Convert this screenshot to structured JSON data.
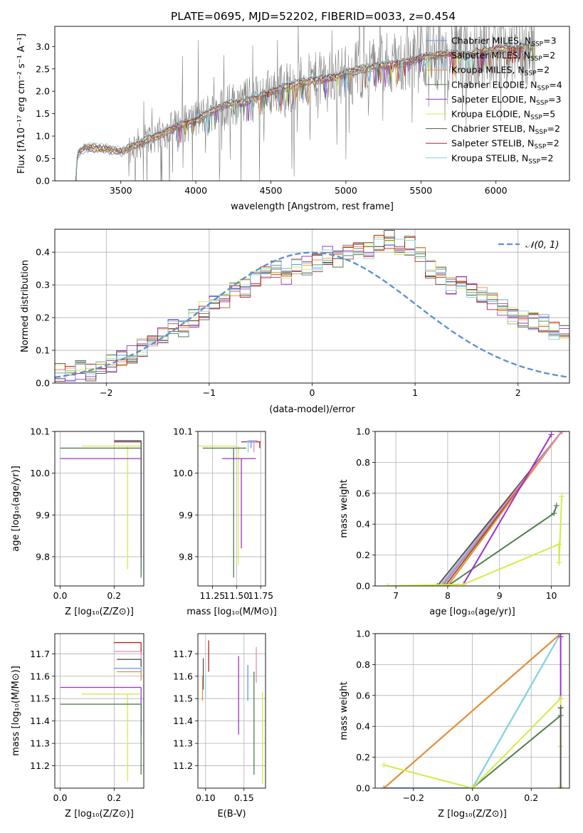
{
  "figure_title": "PLATE=0695, MJD=52202, FIBERID=0033, z=0.454",
  "colors": {
    "chabrier_miles": "#6495ed",
    "salpeter_miles": "#a0522d",
    "kroupa_miles": "#e69138",
    "chabrier_elodie": "#4f7f4f",
    "salpeter_elodie": "#9932cc",
    "kroupa_elodie": "#d4ea4a",
    "chabrier_stelib": "#555555",
    "salpeter_stelib": "#b22222",
    "kroupa_stelib": "#7fd4e0",
    "pink": "#e88ab4",
    "data": "#808080",
    "gaussian": "#5b8ed6"
  },
  "chart_data": [
    {
      "id": "spectrum",
      "type": "line",
      "title": "PLATE=0695, MJD=52202, FIBERID=0033, z=0.454",
      "xlabel": "wavelength [Angstrom, rest frame]",
      "ylabel": "Flux [fλ10⁻¹⁷ erg cm⁻² s⁻¹ A⁻¹]",
      "xlim": [
        3060,
        6490
      ],
      "ylim": [
        0,
        3.45
      ],
      "xticks": [
        3500,
        4000,
        4500,
        5000,
        5500,
        6000
      ],
      "yticks": [
        0.0,
        0.5,
        1.0,
        1.5,
        2.0,
        2.5,
        3.0
      ],
      "ytick_format": 1,
      "grid": false,
      "legend": "top-right",
      "legend_entries": [
        {
          "name": "Chabrier MILES, N",
          "sub": "SSP",
          "suffix": "=3",
          "color": "#6495ed"
        },
        {
          "name": "Salpeter MILES, N",
          "sub": "SSP",
          "suffix": "=2",
          "color": "#a0522d"
        },
        {
          "name": "Kroupa MILES, N",
          "sub": "SSP",
          "suffix": "=2",
          "color": "#e69138"
        },
        {
          "name": "Chabrier ELODIE, N",
          "sub": "SSP",
          "suffix": "=4",
          "color": "#4f7f4f"
        },
        {
          "name": "Salpeter ELODIE, N",
          "sub": "SSP",
          "suffix": "=3",
          "color": "#9932cc"
        },
        {
          "name": "Kroupa ELODIE, N",
          "sub": "SSP",
          "suffix": "=5",
          "color": "#d4ea4a"
        },
        {
          "name": "Chabrier STELIB, N",
          "sub": "SSP",
          "suffix": "=2",
          "color": "#555555"
        },
        {
          "name": "Salpeter STELIB, N",
          "sub": "SSP",
          "suffix": "=2",
          "color": "#b22222"
        },
        {
          "name": "Kroupa STELIB, N",
          "sub": "SSP",
          "suffix": "=2",
          "color": "#7fd4e0"
        }
      ],
      "continuum": [
        [
          3200,
          0.0
        ],
        [
          3210,
          0.6
        ],
        [
          3260,
          0.75
        ],
        [
          3400,
          0.72
        ],
        [
          3500,
          0.65
        ],
        [
          3600,
          0.8
        ],
        [
          3700,
          0.95
        ],
        [
          3800,
          1.1
        ],
        [
          3900,
          1.25
        ],
        [
          4000,
          1.35
        ],
        [
          4100,
          1.55
        ],
        [
          4200,
          1.7
        ],
        [
          4300,
          1.75
        ],
        [
          4400,
          1.85
        ],
        [
          4500,
          2.0
        ],
        [
          4600,
          2.1
        ],
        [
          4700,
          2.2
        ],
        [
          4800,
          2.25
        ],
        [
          4900,
          2.3
        ],
        [
          5000,
          2.4
        ],
        [
          5100,
          2.5
        ],
        [
          5200,
          2.55
        ],
        [
          5300,
          2.6
        ],
        [
          5400,
          2.65
        ],
        [
          5500,
          2.75
        ],
        [
          5600,
          2.8
        ],
        [
          5700,
          2.85
        ],
        [
          5800,
          2.8
        ],
        [
          5900,
          2.9
        ],
        [
          6000,
          2.95
        ],
        [
          6100,
          2.95
        ],
        [
          6250,
          3.0
        ]
      ],
      "noise_start": 3550
    },
    {
      "id": "residuals",
      "type": "area",
      "xlabel": "(data-model)/error",
      "ylabel": "Normed distribution",
      "xlim": [
        -2.5,
        2.5
      ],
      "ylim": [
        0,
        0.47
      ],
      "xticks": [
        -2,
        -1,
        0,
        1,
        2
      ],
      "xtick_labels": [
        "−2",
        "−1",
        "0",
        "1",
        "2"
      ],
      "yticks": [
        0.0,
        0.1,
        0.2,
        0.3,
        0.4
      ],
      "ytick_format": 1,
      "grid": true,
      "legend": "top-right",
      "legend_label": "𝒩(0, 1)",
      "bin_start": -2.5,
      "bin_width": 0.1,
      "base_hist": [
        0.03,
        0.03,
        0.04,
        0.03,
        0.05,
        0.06,
        0.07,
        0.09,
        0.11,
        0.12,
        0.14,
        0.17,
        0.17,
        0.2,
        0.22,
        0.25,
        0.25,
        0.28,
        0.29,
        0.32,
        0.33,
        0.35,
        0.33,
        0.35,
        0.36,
        0.37,
        0.39,
        0.38,
        0.4,
        0.41,
        0.41,
        0.43,
        0.44,
        0.42,
        0.42,
        0.39,
        0.35,
        0.33,
        0.3,
        0.3,
        0.28,
        0.27,
        0.25,
        0.23,
        0.21,
        0.2,
        0.19,
        0.18,
        0.16,
        0.15
      ],
      "gaussian": {
        "mu": 0,
        "sigma": 1
      }
    },
    {
      "id": "age-vs-z",
      "type": "scatter",
      "xlabel": "Z [log₁₀(Z/Z⊙)]",
      "ylabel": "age  [log₁₀(age/yr)]",
      "xlim": [
        -0.02,
        0.31
      ],
      "ylim": [
        9.73,
        10.1
      ],
      "xticks": [
        0.0,
        0.2
      ],
      "xtick_labels": [
        "0.0",
        "0.2"
      ],
      "yticks": [
        9.8,
        9.9,
        10.0,
        10.1
      ],
      "ytick_format": 1,
      "grid": true,
      "segments": [
        {
          "color": "#b22222",
          "h": [
            0.2,
            0.3,
            10.075
          ],
          "v": [
            0.3,
            9.78,
            10.075
          ]
        },
        {
          "color": "#7fd4e0",
          "h": [
            0.2,
            0.3,
            10.077
          ],
          "v": [
            0.3,
            9.76,
            10.077
          ]
        },
        {
          "color": "#d4ea4a",
          "h": [
            0.08,
            0.3,
            10.065
          ],
          "v": [
            0.25,
            9.77,
            10.065
          ]
        },
        {
          "color": "#4f7f4f",
          "h": [
            0.0,
            0.3,
            10.06
          ],
          "v": [
            0.3,
            9.75,
            10.06
          ]
        },
        {
          "color": "#9932cc",
          "h": [
            0.0,
            0.3,
            10.035
          ],
          "v": [
            0.3,
            9.82,
            10.035
          ]
        },
        {
          "color": "#555555",
          "h": [
            0.2,
            0.3,
            10.078
          ],
          "v": [
            0.3,
            9.8,
            10.078
          ]
        }
      ]
    },
    {
      "id": "age-vs-mass",
      "type": "scatter",
      "xlabel": "mass [log₁₀(M/M⊙)]",
      "xlim": [
        11.1,
        11.8
      ],
      "ylim": [
        9.73,
        10.1
      ],
      "xticks": [
        11.25,
        11.5,
        11.75
      ],
      "xtick_labels": [
        "11.25",
        "11.50",
        "11.75"
      ],
      "yticks": [
        9.8,
        9.9,
        10.0,
        10.1
      ],
      "ytick_format": 1,
      "grid": true,
      "segments": [
        {
          "color": "#b22222",
          "h": [
            11.55,
            11.75,
            10.075
          ],
          "v": [
            11.74,
            10.06,
            10.075
          ]
        },
        {
          "color": "#d4ea4a",
          "h": [
            11.1,
            11.5,
            10.065
          ],
          "v": [
            11.52,
            9.78,
            10.065
          ]
        },
        {
          "color": "#4f7f4f",
          "h": [
            11.15,
            11.6,
            10.06
          ],
          "v": [
            11.47,
            9.75,
            10.06
          ]
        },
        {
          "color": "#9932cc",
          "h": [
            11.35,
            11.7,
            10.035
          ],
          "v": [
            11.55,
            9.82,
            10.035
          ]
        },
        {
          "color": "#6495ed",
          "h": [
            11.6,
            11.7,
            10.075
          ],
          "v": [
            11.65,
            10.06,
            10.075
          ]
        },
        {
          "color": "#7fd4e0",
          "h": [
            11.6,
            11.7,
            10.077
          ],
          "v": [
            11.62,
            10.05,
            10.077
          ]
        },
        {
          "color": "#e88ab4",
          "h": [
            11.62,
            11.72,
            10.078
          ],
          "v": [
            11.68,
            10.05,
            10.078
          ]
        }
      ]
    },
    {
      "id": "cumulative-age",
      "type": "line",
      "xlabel": "age  [log₁₀(age/yr)]",
      "ylabel": "mass weight",
      "xlim": [
        6.6,
        10.35
      ],
      "ylim": [
        0,
        1.0
      ],
      "xticks": [
        7,
        8,
        9,
        10
      ],
      "yticks": [
        0.0,
        0.2,
        0.4,
        0.6,
        0.8,
        1.0
      ],
      "ytick_format": 1,
      "grid": true,
      "series": [
        {
          "color": "#6495ed",
          "points": [
            [
              7.9,
              0
            ],
            [
              10.2,
              1.0
            ]
          ]
        },
        {
          "color": "#a0522d",
          "points": [
            [
              7.95,
              0
            ],
            [
              10.2,
              1.0
            ]
          ]
        },
        {
          "color": "#e69138",
          "points": [
            [
              8.0,
              0
            ],
            [
              10.2,
              1.0
            ]
          ]
        },
        {
          "color": "#7fd4e0",
          "points": [
            [
              7.85,
              0
            ],
            [
              10.2,
              1.0
            ]
          ]
        },
        {
          "color": "#555555",
          "points": [
            [
              7.8,
              0
            ],
            [
              10.2,
              1.0
            ]
          ]
        },
        {
          "color": "#e88ab4",
          "points": [
            [
              7.9,
              0.01
            ],
            [
              10.2,
              1.0
            ]
          ]
        },
        {
          "color": "#4f7f4f",
          "points": [
            [
              8.0,
              0
            ],
            [
              10.05,
              0.47
            ],
            [
              10.1,
              0.52
            ]
          ]
        },
        {
          "color": "#9932cc",
          "points": [
            [
              8.3,
              0.01
            ],
            [
              10.0,
              0.98
            ]
          ]
        },
        {
          "color": "#d4ea4a",
          "points": [
            [
              6.85,
              0
            ],
            [
              8.3,
              0.01
            ],
            [
              10.15,
              0.27
            ],
            [
              10.15,
              0.15
            ],
            [
              10.2,
              0.58
            ]
          ]
        }
      ]
    },
    {
      "id": "mass-vs-z",
      "type": "scatter",
      "xlabel": "Z [log₁₀(Z/Z⊙)]",
      "ylabel": "mass [log₁₀(M/M⊙)]",
      "xlim": [
        -0.02,
        0.31
      ],
      "ylim": [
        11.1,
        11.79
      ],
      "xticks": [
        0.0,
        0.2
      ],
      "xtick_labels": [
        "0.0",
        "0.2"
      ],
      "yticks": [
        11.2,
        11.3,
        11.4,
        11.5,
        11.6,
        11.7
      ],
      "ytick_format": 1,
      "grid": true,
      "segments": [
        {
          "color": "#b22222",
          "h": [
            0.2,
            0.3,
            11.75
          ],
          "v": [
            0.3,
            11.7,
            11.75
          ]
        },
        {
          "color": "#e88ab4",
          "h": [
            0.2,
            0.3,
            11.71
          ],
          "v": [
            0.3,
            11.66,
            11.71
          ]
        },
        {
          "color": "#555555",
          "h": [
            0.21,
            0.3,
            11.675
          ],
          "v": [
            0.3,
            11.64,
            11.675
          ]
        },
        {
          "color": "#6495ed",
          "h": [
            0.2,
            0.3,
            11.635
          ],
          "v": [
            0.3,
            11.6,
            11.635
          ]
        },
        {
          "color": "#e69138",
          "h": [
            0.21,
            0.3,
            11.62
          ],
          "v": [
            0.3,
            11.58,
            11.62
          ]
        },
        {
          "color": "#9932cc",
          "h": [
            0.0,
            0.3,
            11.55
          ],
          "v": [
            0.3,
            11.34,
            11.55
          ]
        },
        {
          "color": "#d4ea4a",
          "h": [
            0.08,
            0.3,
            11.52
          ],
          "v": [
            0.25,
            11.13,
            11.52
          ]
        },
        {
          "color": "#4f7f4f",
          "h": [
            0.0,
            0.3,
            11.475
          ],
          "v": [
            0.3,
            11.16,
            11.475
          ]
        }
      ]
    },
    {
      "id": "mass-vs-ebv",
      "type": "scatter",
      "xlabel": "E(B-V)",
      "xlim": [
        0.09,
        0.178
      ],
      "ylim": [
        11.1,
        11.79
      ],
      "xticks": [
        0.1,
        0.15
      ],
      "xtick_labels": [
        "0.10",
        "0.15"
      ],
      "yticks": [
        11.2,
        11.3,
        11.4,
        11.5,
        11.6,
        11.7
      ],
      "ytick_format": 1,
      "grid": true,
      "vsegments": [
        {
          "color": "#555555",
          "x": 0.097,
          "y0": 11.54,
          "y1": 11.68
        },
        {
          "color": "#e69138",
          "x": 0.096,
          "y0": 11.49,
          "y1": 11.6
        },
        {
          "color": "#7fd4e0",
          "x": 0.1,
          "y0": 11.5,
          "y1": 11.6
        },
        {
          "color": "#b22222",
          "x": 0.104,
          "y0": 11.62,
          "y1": 11.76
        },
        {
          "color": "#9932cc",
          "x": 0.143,
          "y0": 11.34,
          "y1": 11.69
        },
        {
          "color": "#6495ed",
          "x": 0.155,
          "y0": 11.49,
          "y1": 11.65
        },
        {
          "color": "#4f7f4f",
          "x": 0.163,
          "y0": 11.16,
          "y1": 11.62
        },
        {
          "color": "#e88ab4",
          "x": 0.166,
          "y0": 11.57,
          "y1": 11.73
        },
        {
          "color": "#d4ea4a",
          "x": 0.174,
          "y0": 11.12,
          "y1": 11.53
        }
      ]
    },
    {
      "id": "cumulative-z",
      "type": "line",
      "xlabel": "Z [log₁₀(Z/Z⊙)]",
      "ylabel": "mass weight",
      "xlim": [
        -0.33,
        0.33
      ],
      "ylim": [
        0,
        1.0
      ],
      "xticks": [
        -0.2,
        0.0,
        0.2
      ],
      "xtick_labels": [
        "−0.2",
        "0.0",
        "0.2"
      ],
      "yticks": [
        0.0,
        0.2,
        0.4,
        0.6,
        0.8,
        1.0
      ],
      "ytick_format": 1,
      "grid": true,
      "series": [
        {
          "color": "#6495ed",
          "points": [
            [
              -0.3,
              0
            ],
            [
              0.0,
              0
            ],
            [
              0.3,
              1.0
            ]
          ]
        },
        {
          "color": "#7fd4e0",
          "points": [
            [
              0.0,
              0
            ],
            [
              0.3,
              1.0
            ]
          ]
        },
        {
          "color": "#a0522d",
          "points": [
            [
              -0.3,
              0
            ],
            [
              0.3,
              1.0
            ]
          ]
        },
        {
          "color": "#e69138",
          "points": [
            [
              -0.3,
              0
            ],
            [
              0.3,
              1.0
            ]
          ]
        },
        {
          "color": "#4f7f4f",
          "points": [
            [
              0.0,
              0
            ],
            [
              0.3,
              0.47
            ],
            [
              0.3,
              0.52
            ]
          ]
        },
        {
          "color": "#9932cc",
          "points": [
            [
              0.3,
              0.98
            ],
            [
              0.3,
              0.58
            ]
          ]
        },
        {
          "color": "#d4ea4a",
          "points": [
            [
              -0.3,
              0.15
            ],
            [
              0.0,
              0
            ],
            [
              0.3,
              0.58
            ],
            [
              0.3,
              0.27
            ],
            [
              0.3,
              0.01
            ]
          ]
        },
        {
          "color": "#555555",
          "points": [
            [
              0.3,
              0.52
            ],
            [
              0.3,
              0.0
            ]
          ]
        }
      ]
    }
  ]
}
